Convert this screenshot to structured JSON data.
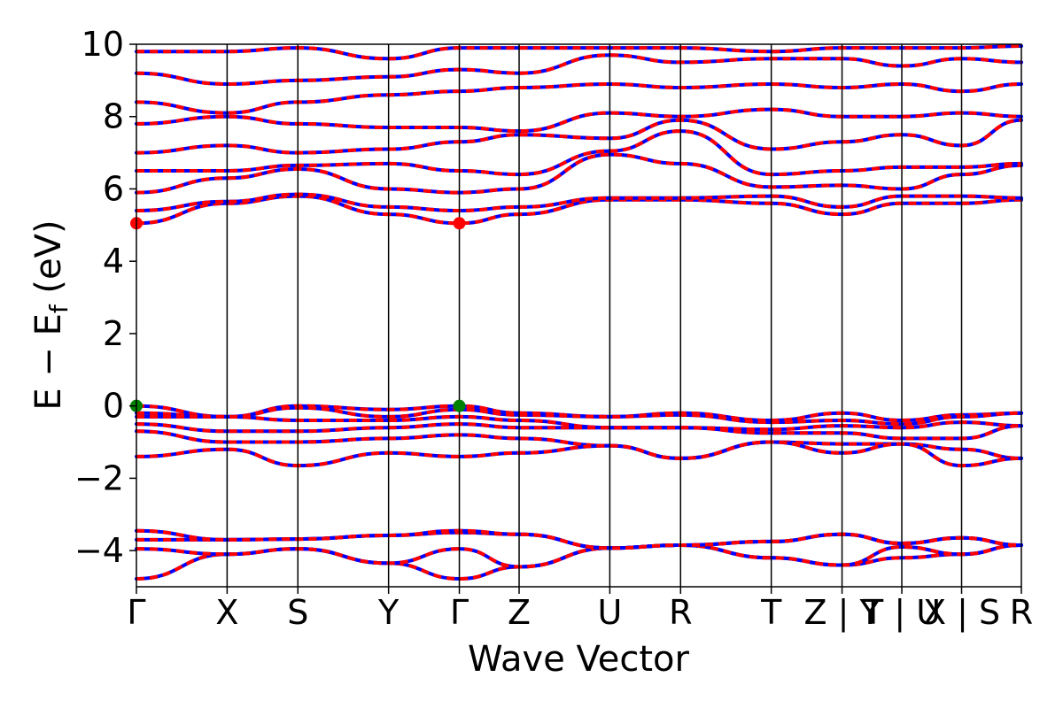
{
  "chart_data": {
    "type": "line",
    "xlabel": "Wave Vector",
    "ylabel": "E − E",
    "ylabel_sub": "f",
    "ylabel_unit": " (eV)",
    "ylim": [
      -5,
      10
    ],
    "yticks": [
      -4,
      -2,
      0,
      2,
      4,
      6,
      8,
      10
    ],
    "ytick_labels": [
      "−4",
      "−2",
      "0",
      "2",
      "4",
      "6",
      "8",
      "10"
    ],
    "kpath_segment_lengths": [
      1.32,
      1.03,
      1.32,
      1.03,
      0.87,
      1.32,
      1.03,
      1.32,
      1.03,
      0.87,
      0.87,
      0.87
    ],
    "kpoint_labels": [
      "Γ",
      "X",
      "S",
      "Y",
      "Γ",
      "Z",
      "U",
      "R",
      "T",
      "Z | Y",
      "T | U",
      "X | S",
      "R"
    ],
    "band_colors": {
      "spin_up": "#ff0000",
      "spin_down": "#0000ff"
    },
    "band_edge_markers": [
      {
        "kind": "CBM",
        "kpoint": "Γ",
        "energy": 5.05,
        "color": "#ff0000"
      },
      {
        "kind": "CBM",
        "kpoint": "Γ",
        "energy": 5.05,
        "color": "#ff0000"
      },
      {
        "kind": "VBM",
        "kpoint": "Γ",
        "energy": 0.0,
        "color": "#008000"
      },
      {
        "kind": "VBM",
        "kpoint": "Γ",
        "energy": 0.0,
        "color": "#008000"
      }
    ],
    "band_energies_at_kpoints": {
      "deep_valence": [
        [
          -4.78,
          -4.1,
          -3.95,
          -4.35,
          -4.78,
          -4.45,
          -3.93,
          -3.85,
          -4.2,
          -4.4,
          -4.2,
          -4.1,
          -3.85
        ],
        [
          -3.95,
          -4.1,
          -3.95,
          -4.35,
          -3.95,
          -4.45,
          -3.93,
          -3.85,
          -4.2,
          -4.4,
          -3.9,
          -4.1,
          -3.85
        ],
        [
          -3.7,
          -3.7,
          -3.68,
          -3.58,
          -3.5,
          -3.55,
          -3.93,
          -3.85,
          -3.75,
          -3.55,
          -3.8,
          -3.65,
          -3.85
        ],
        [
          -3.45,
          -3.7,
          -3.68,
          -3.58,
          -3.45,
          -3.55,
          -3.93,
          -3.85,
          -3.75,
          -3.55,
          -3.8,
          -3.65,
          -3.85
        ]
      ],
      "valence": [
        [
          0.0,
          -0.3,
          0.0,
          -0.1,
          0.0,
          -0.2,
          -0.3,
          -0.2,
          -0.4,
          -0.2,
          -0.4,
          -0.25,
          -0.2
        ],
        [
          -0.2,
          -0.3,
          -0.05,
          -0.3,
          -0.1,
          -0.25,
          -0.3,
          -0.25,
          -0.45,
          -0.4,
          -0.5,
          -0.3,
          -0.2
        ],
        [
          -0.3,
          -0.3,
          -0.4,
          -0.4,
          -0.3,
          -0.4,
          -0.6,
          -0.6,
          -0.65,
          -0.55,
          -0.6,
          -0.45,
          -0.55
        ],
        [
          -0.5,
          -0.7,
          -0.7,
          -0.6,
          -0.5,
          -0.6,
          -0.6,
          -0.6,
          -0.75,
          -0.75,
          -0.9,
          -0.9,
          -0.55
        ],
        [
          -0.7,
          -1.0,
          -1.0,
          -0.9,
          -0.8,
          -0.9,
          -1.1,
          -1.45,
          -1.0,
          -1.05,
          -1.05,
          -1.2,
          -1.45
        ],
        [
          -1.4,
          -1.2,
          -1.65,
          -1.3,
          -1.4,
          -1.3,
          -1.1,
          -1.45,
          -1.0,
          -1.3,
          -1.05,
          -1.65,
          -1.45
        ]
      ],
      "conduction": [
        [
          5.05,
          5.6,
          5.8,
          5.3,
          5.05,
          5.3,
          5.7,
          5.7,
          5.6,
          5.3,
          5.6,
          5.6,
          5.7
        ],
        [
          5.4,
          5.65,
          5.85,
          5.5,
          5.4,
          5.5,
          5.75,
          5.75,
          5.8,
          5.5,
          5.8,
          5.8,
          5.75
        ],
        [
          5.9,
          6.3,
          6.55,
          6.0,
          5.9,
          6.0,
          6.95,
          6.7,
          6.05,
          6.1,
          6.0,
          6.4,
          6.65
        ],
        [
          6.5,
          6.5,
          6.65,
          6.7,
          6.5,
          6.4,
          7.05,
          7.6,
          6.4,
          6.5,
          6.6,
          6.6,
          6.7
        ],
        [
          7.0,
          7.2,
          7.0,
          7.1,
          7.3,
          7.5,
          7.4,
          7.9,
          7.1,
          7.3,
          7.5,
          7.2,
          7.9
        ],
        [
          7.8,
          8.0,
          7.8,
          7.7,
          7.7,
          7.6,
          8.1,
          8.0,
          8.2,
          8.0,
          8.0,
          8.1,
          8.0
        ],
        [
          8.4,
          8.1,
          8.4,
          8.6,
          8.7,
          8.8,
          8.9,
          8.8,
          8.9,
          8.8,
          8.9,
          8.7,
          8.9
        ],
        [
          9.2,
          8.9,
          9.0,
          9.1,
          9.3,
          9.2,
          9.7,
          9.5,
          9.6,
          9.6,
          9.4,
          9.6,
          9.5
        ],
        [
          9.8,
          9.8,
          9.9,
          9.6,
          9.9,
          9.9,
          9.9,
          9.9,
          9.8,
          9.9,
          9.9,
          9.9,
          9.95
        ]
      ]
    }
  }
}
